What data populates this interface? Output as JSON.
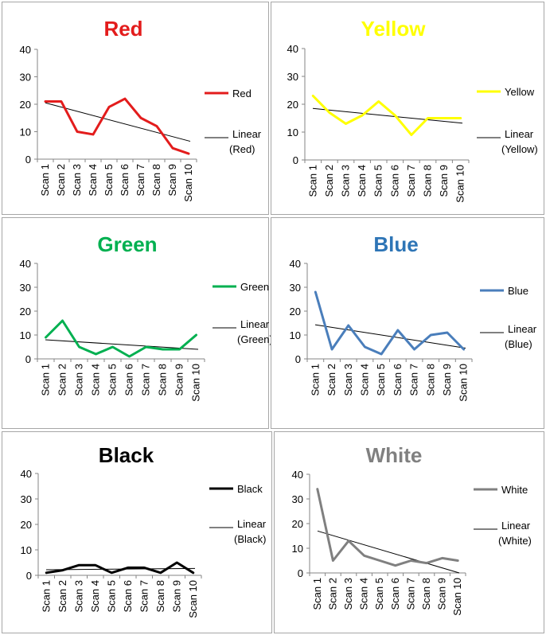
{
  "chart_data": [
    {
      "type": "line",
      "title": "Red",
      "color": "#e31c1c",
      "categories": [
        "Scan 1",
        "Scan 2",
        "Scan 3",
        "Scan 4",
        "Scan 5",
        "Scan 6",
        "Scan 7",
        "Scan 8",
        "Scan 9",
        "Scan 10"
      ],
      "series": [
        {
          "name": "Red",
          "values": [
            21,
            21,
            10,
            9,
            19,
            22,
            15,
            12,
            4,
            2
          ]
        }
      ],
      "trendline": {
        "label_line1": "Linear",
        "label_line2": "(Red)",
        "start": 20.5,
        "end": 6.5
      },
      "ylim": [
        0,
        40
      ],
      "yticks": [
        "0",
        "10",
        "20",
        "30",
        "40"
      ],
      "grid": false,
      "legend": "right"
    },
    {
      "type": "line",
      "title": "Yellow",
      "color": "#ffff00",
      "title_color": "#ffff00",
      "categories": [
        "Scan 1",
        "Scan 2",
        "Scan 3",
        "Scan 4",
        "Scan 5",
        "Scan 6",
        "Scan 7",
        "Scan 8",
        "Scan 9",
        "Scan 10"
      ],
      "series": [
        {
          "name": "Yellow",
          "values": [
            23,
            17,
            13,
            16,
            21,
            16,
            9,
            15,
            15,
            15
          ]
        }
      ],
      "trendline": {
        "label_line1": "Linear",
        "label_line2": "(Yellow)",
        "start": 18.5,
        "end": 13.2
      },
      "ylim": [
        0,
        40
      ],
      "yticks": [
        "0",
        "10",
        "20",
        "30",
        "40"
      ],
      "grid": false,
      "legend": "right"
    },
    {
      "type": "line",
      "title": "Green",
      "color": "#00b050",
      "categories": [
        "Scan 1",
        "Scan 2",
        "Scan 3",
        "Scan 4",
        "Scan 5",
        "Scan 6",
        "Scan 7",
        "Scan 8",
        "Scan 9",
        "Scan 10"
      ],
      "series": [
        {
          "name": "Green",
          "values": [
            9,
            16,
            5,
            2,
            5,
            1,
            5,
            4,
            4,
            10
          ]
        }
      ],
      "trendline": {
        "label_line1": "Linear",
        "label_line2": "(Green)",
        "start": 8,
        "end": 4
      },
      "ylim": [
        0,
        40
      ],
      "yticks": [
        "0",
        "10",
        "20",
        "30",
        "40"
      ],
      "grid": false,
      "legend": "right"
    },
    {
      "type": "line",
      "title": "Blue",
      "color": "#4a7ebb",
      "title_color": "#2e75b6",
      "categories": [
        "Scan 1",
        "Scan 2",
        "Scan 3",
        "Scan 4",
        "Scan 5",
        "Scan 6",
        "Scan 7",
        "Scan 8",
        "Scan 9",
        "Scan 10"
      ],
      "series": [
        {
          "name": "Blue",
          "values": [
            28,
            4,
            14,
            5,
            2,
            12,
            4,
            10,
            11,
            4
          ]
        }
      ],
      "trendline": {
        "label_line1": "Linear",
        "label_line2": "(Blue)",
        "start": 14.3,
        "end": 4.5
      },
      "ylim": [
        0,
        40
      ],
      "yticks": [
        "0",
        "10",
        "20",
        "30",
        "40"
      ],
      "grid": false,
      "legend": "right"
    },
    {
      "type": "line",
      "title": "Black",
      "color": "#000000",
      "categories": [
        "Scan 1",
        "Scan 2",
        "Scan 3",
        "Scan 4",
        "Scan 5",
        "Scan 6",
        "Scan 7",
        "Scan 8",
        "Scan 9",
        "Scan 10"
      ],
      "series": [
        {
          "name": "Black",
          "values": [
            1,
            2,
            4,
            4,
            1,
            3,
            3,
            1,
            5,
            1
          ]
        }
      ],
      "trendline": {
        "label_line1": "Linear",
        "label_line2": "(Black)",
        "start": 2.2,
        "end": 2.7
      },
      "ylim": [
        0,
        40
      ],
      "yticks": [
        "0",
        "10",
        "20",
        "30",
        "40"
      ],
      "grid": false,
      "legend": "right"
    },
    {
      "type": "line",
      "title": "White",
      "color": "#808080",
      "categories": [
        "Scan 1",
        "Scan 2",
        "Scan 3",
        "Scan 4",
        "Scan 5",
        "Scan 6",
        "Scan 7",
        "Scan 8",
        "Scan 9",
        "Scan 10"
      ],
      "series": [
        {
          "name": "White",
          "values": [
            34,
            5,
            13,
            7,
            5,
            3,
            5,
            4,
            6,
            5
          ]
        }
      ],
      "trendline": {
        "label_line1": "Linear",
        "label_line2": "(White)",
        "start": 17,
        "end": 0
      },
      "ylim": [
        0,
        40
      ],
      "yticks": [
        "0",
        "10",
        "20",
        "30",
        "40"
      ],
      "grid": false,
      "legend": "right"
    }
  ]
}
